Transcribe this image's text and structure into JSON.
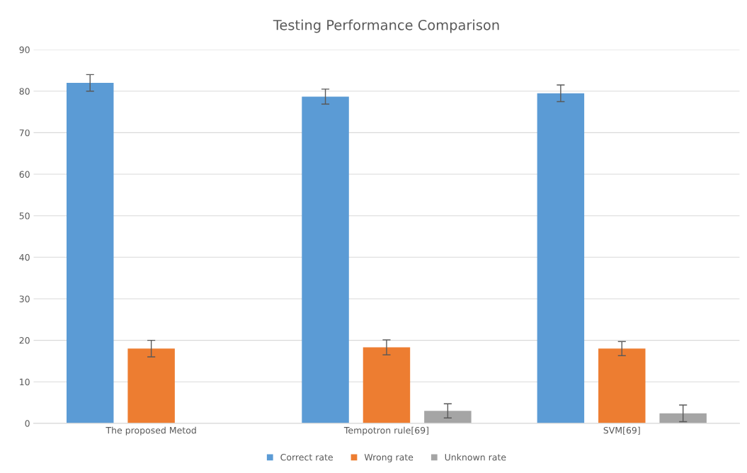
{
  "chart_data": {
    "type": "bar",
    "title": "Testing Performance Comparison",
    "categories": [
      "The proposed Metod",
      "Tempotron rule[69]",
      "SVM[69]"
    ],
    "series": [
      {
        "name": "Correct rate",
        "color": "#5b9bd5",
        "values": [
          82,
          78.7,
          79.5
        ],
        "errors": [
          2,
          1.8,
          2
        ]
      },
      {
        "name": "Wrong rate",
        "color": "#ed7d31",
        "values": [
          18,
          18.3,
          18
        ],
        "errors": [
          2,
          1.8,
          1.7
        ]
      },
      {
        "name": "Unknown rate",
        "color": "#a5a5a5",
        "values": [
          0,
          3,
          2.4
        ],
        "errors": [
          null,
          1.7,
          2
        ]
      }
    ],
    "ylim": [
      0,
      90
    ],
    "yticks": [
      0,
      10,
      20,
      30,
      40,
      50,
      60,
      70,
      80,
      90
    ],
    "grid": "y",
    "legend": "bottom"
  }
}
